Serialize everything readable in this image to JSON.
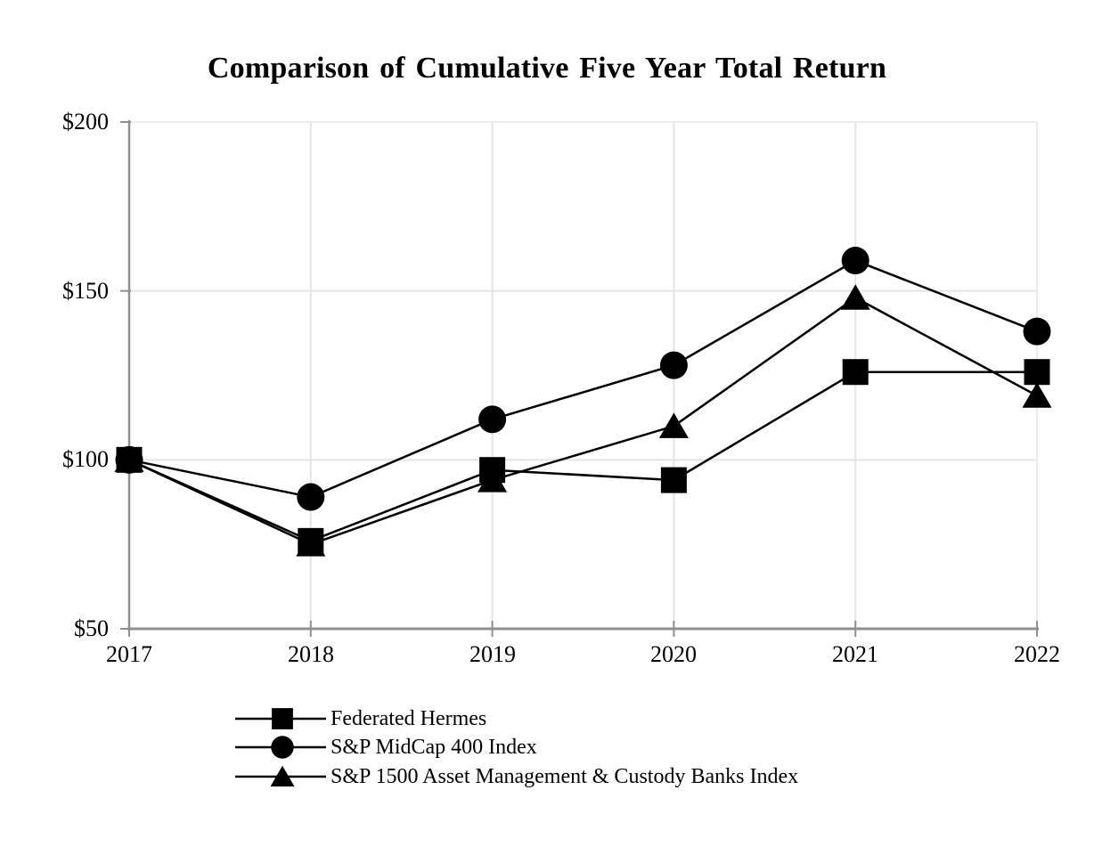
{
  "chart_data": {
    "type": "line",
    "title": "Comparison of Cumulative Five Year Total Return",
    "categories": [
      "2017",
      "2018",
      "2019",
      "2020",
      "2021",
      "2022"
    ],
    "series": [
      {
        "name": "Federated Hermes",
        "marker": "square",
        "values": [
          100,
          76,
          97,
          94,
          126,
          126
        ]
      },
      {
        "name": "S&P MidCap 400 Index",
        "marker": "circle",
        "values": [
          100,
          89,
          112,
          128,
          159,
          138
        ]
      },
      {
        "name": "S&P 1500 Asset Management & Custody Banks Index",
        "marker": "triangle",
        "values": [
          100,
          75,
          94,
          110,
          148,
          119
        ]
      }
    ],
    "xlabel": "",
    "ylabel": "",
    "ylim": [
      50,
      200
    ],
    "yticks": [
      200,
      150,
      100,
      50
    ],
    "ytick_labels": [
      "$200",
      "$150",
      "$100",
      "$50"
    ],
    "grid": "both-light",
    "legend_position": "bottom-left",
    "colors": {
      "series": "#000000",
      "text": "#000000",
      "axis": "#8f8f8f",
      "gridline": "#e4e4e4",
      "frame": "#ececec",
      "background": "#ffffff"
    }
  }
}
